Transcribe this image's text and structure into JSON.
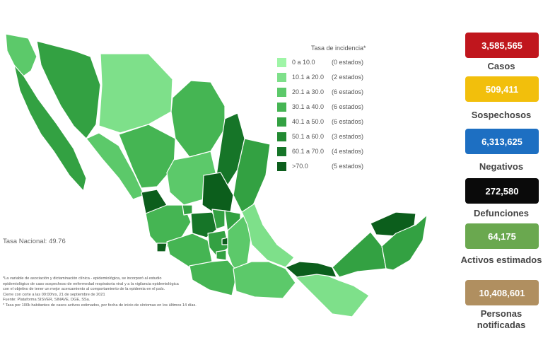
{
  "legend": {
    "title": "Tasa de incidencia*",
    "items": [
      {
        "range": "0   a  10.0",
        "count": "(0 estados)",
        "color": "#9ff5a7"
      },
      {
        "range": "10.1 a  20.0",
        "count": "(2 estados)",
        "color": "#7ee08a"
      },
      {
        "range": "20.1 a  30.0",
        "count": "(6 estados)",
        "color": "#5cc96a"
      },
      {
        "range": "30.1 a  40.0",
        "count": "(6 estados)",
        "color": "#45b553"
      },
      {
        "range": "40.1 a  50.0",
        "count": "(6 estados)",
        "color": "#33a142"
      },
      {
        "range": "50.1 a  60.0",
        "count": "(3 estados)",
        "color": "#228a32"
      },
      {
        "range": "60.1 a  70.0",
        "count": "(4 estados)",
        "color": "#167528"
      },
      {
        "range": ">70.0",
        "count": "(5 estados)",
        "color": "#0c5e1c"
      }
    ]
  },
  "tasa_nacional": "Tasa Nacional: 49.76",
  "notes": [
    "*La variable de asociación y dictaminación clínica - epidemiológica, se incorporó al estudio",
    "epidemiológico de caso sospechoso de enfermedad respiratoria viral y a la vigilancia epidemiológica",
    "con el objetivo de tener un mejor acercamiento al comportamiento de la epidemia en el país.",
    "Cierre con corte a las 09:00hrs, 21 de septiembre de 2021",
    "Fuente: Plataforma SISVER, SINAVE, DGE, SSa.",
    "* Tasa por 100k habitantes de casos activos estimados, por fecha de inicio de síntomas en los últimos 14 días."
  ],
  "stats": [
    {
      "value": "3,585,565",
      "label": "Casos",
      "color": "#c0161d"
    },
    {
      "value": "509,411",
      "label": "Sospechosos",
      "color": "#f2bf0c"
    },
    {
      "value": "6,313,625",
      "label": "Negativos",
      "color": "#1d6fc2"
    },
    {
      "value": "272,580",
      "label": "Defunciones",
      "color": "#0a0a0a"
    },
    {
      "value": "64,175",
      "label": "Activos estimados",
      "color": "#6aa84f"
    },
    {
      "value": "10,408,601",
      "label": "Personas notificadas",
      "color": "#b08f60"
    }
  ]
}
